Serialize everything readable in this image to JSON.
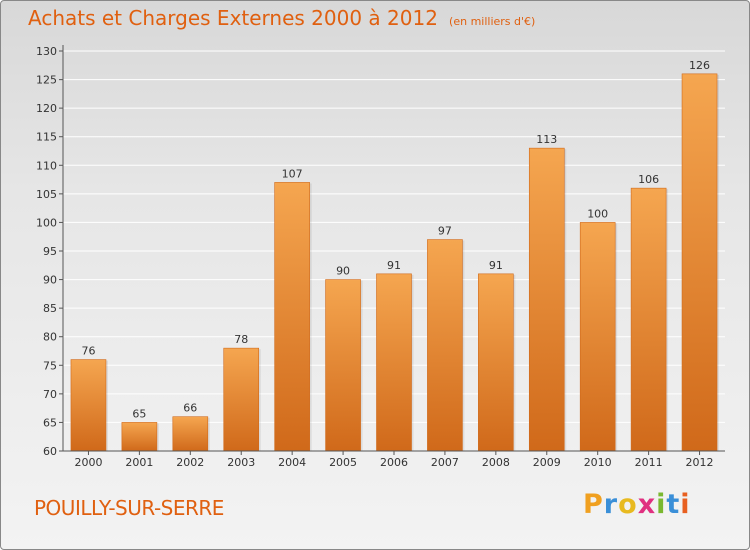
{
  "header": {
    "title": "Achats et Charges Externes 2000 à 2012",
    "subtitle": "(en milliers d'€)"
  },
  "footer": {
    "commune": "POUILLY-SUR-SERRE",
    "brand": {
      "letters": [
        "P",
        "r",
        "o",
        "x",
        "i",
        "t",
        "i"
      ],
      "colors": [
        "#f0a020",
        "#3a8fd8",
        "#e8ba20",
        "#e03080",
        "#7ab830",
        "#3a8fd8",
        "#e86020"
      ]
    }
  },
  "colors": {
    "bar_light": "#f5a650",
    "bar_dark": "#d0691a",
    "axis": "#555555",
    "grid": "#ffffff"
  },
  "chart_data": {
    "type": "bar",
    "categories": [
      "2000",
      "2001",
      "2002",
      "2003",
      "2004",
      "2005",
      "2006",
      "2007",
      "2008",
      "2009",
      "2010",
      "2011",
      "2012"
    ],
    "values": [
      76,
      65,
      66,
      78,
      107,
      90,
      91,
      97,
      91,
      113,
      100,
      106,
      126
    ],
    "title": "Achats et Charges Externes 2000 à 2012",
    "subtitle": "(en milliers d'€)",
    "xlabel": "",
    "ylabel": "",
    "ylim": [
      60,
      130
    ],
    "yticks": [
      60,
      65,
      70,
      75,
      80,
      85,
      90,
      95,
      100,
      105,
      110,
      115,
      120,
      125,
      130
    ],
    "grid": true,
    "data_labels": true
  }
}
